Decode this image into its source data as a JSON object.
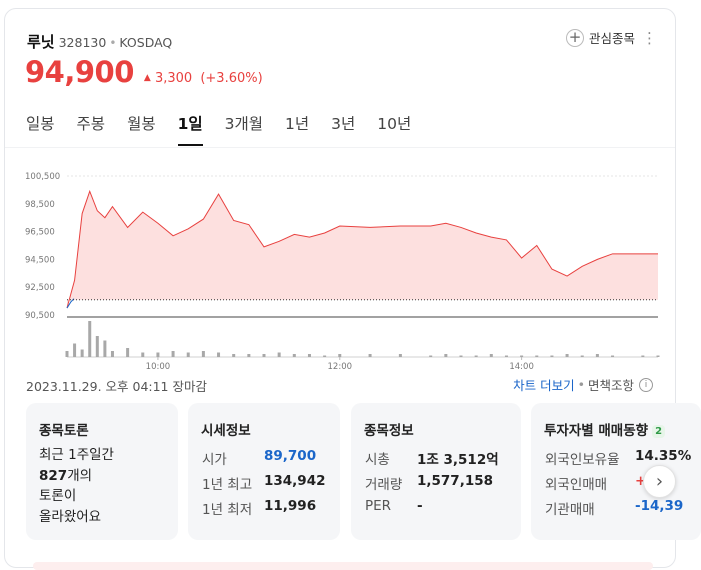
{
  "stock": {
    "name": "루닛",
    "code": "328130",
    "separator": "•",
    "market": "KOSDAQ",
    "price": "94,900",
    "change_arrow": "▲",
    "change_amount": "3,300",
    "change_percent": "(+3.60%)"
  },
  "actions": {
    "watchlist_label": "관심종목",
    "plus_icon": "+",
    "more_icon": "⋮"
  },
  "tabs": [
    {
      "label": "일봉",
      "active": false
    },
    {
      "label": "주봉",
      "active": false
    },
    {
      "label": "월봉",
      "active": false
    },
    {
      "label": "1일",
      "active": true
    },
    {
      "label": "3개월",
      "active": false
    },
    {
      "label": "1년",
      "active": false
    },
    {
      "label": "3년",
      "active": false
    },
    {
      "label": "10년",
      "active": false
    }
  ],
  "chart_data": {
    "type": "area",
    "y_ticks": [
      "100,500",
      "98,500",
      "96,500",
      "94,500",
      "92,500",
      "90,500"
    ],
    "x_ticks": [
      "10:00",
      "12:00",
      "14:00"
    ],
    "ylim": [
      90500,
      100500
    ],
    "previous_close": 91600,
    "colors": {
      "line": "#e8413f",
      "fill": "#fde0df",
      "baseline": "#333333",
      "volume": "#a8a8a8",
      "below": "#1b66c9"
    },
    "x": [
      "09:00",
      "09:05",
      "09:10",
      "09:15",
      "09:20",
      "09:25",
      "09:30",
      "09:40",
      "09:50",
      "10:00",
      "10:10",
      "10:20",
      "10:30",
      "10:40",
      "10:50",
      "11:00",
      "11:10",
      "11:20",
      "11:30",
      "11:40",
      "11:50",
      "12:00",
      "12:20",
      "12:40",
      "13:00",
      "13:10",
      "13:20",
      "13:30",
      "13:40",
      "13:50",
      "14:00",
      "14:10",
      "14:20",
      "14:30",
      "14:40",
      "14:50",
      "15:00",
      "15:20",
      "15:30"
    ],
    "price": [
      91000,
      93000,
      97800,
      99400,
      98000,
      97500,
      98300,
      96800,
      97900,
      97100,
      96200,
      96700,
      97400,
      99200,
      97300,
      97000,
      95400,
      95800,
      96300,
      96100,
      96400,
      96900,
      96800,
      96900,
      96900,
      97100,
      96800,
      96400,
      96100,
      95900,
      94600,
      95500,
      93800,
      93300,
      94000,
      94500,
      94900,
      94900,
      94900
    ],
    "volume": [
      4,
      9,
      5,
      24,
      14,
      11,
      4,
      6,
      3,
      3,
      4,
      3,
      4,
      3,
      2,
      2,
      2,
      3,
      2,
      2,
      1,
      2,
      2,
      2,
      1,
      2,
      1,
      1,
      2,
      1,
      1,
      1,
      1,
      2,
      1,
      2,
      1,
      1,
      1
    ]
  },
  "footer": {
    "datetime": "2023.11.29. 오후 04:11 장마감",
    "chart_link": "차트 더보기",
    "separator": "•",
    "notice": "면책조항",
    "info_icon": "i"
  },
  "panels": {
    "board": {
      "title": "종목토론",
      "line1": "최근 1주일간",
      "count": "827",
      "line2_suffix": "개의",
      "line3": "토론이",
      "line4": "올라왔어요"
    },
    "market": {
      "title": "시세정보",
      "rows": [
        {
          "label": "시가",
          "value": "89,700"
        },
        {
          "label": "1년 최고",
          "value": "134,942"
        },
        {
          "label": "1년 최저",
          "value": "11,996"
        }
      ]
    },
    "info": {
      "title": "종목정보",
      "rows": [
        {
          "label": "시총",
          "value": "1조 3,512억"
        },
        {
          "label": "거래량",
          "value": "1,577,158"
        },
        {
          "label": "PER",
          "value": "-"
        }
      ]
    },
    "investor": {
      "title": "투자자별 매매동향",
      "badge": "2",
      "rows": [
        {
          "label": "외국인보유율",
          "value": "14.35%"
        },
        {
          "label": "외국인매매",
          "value": "+4"
        },
        {
          "label": "기관매매",
          "value": "-14,39"
        }
      ]
    }
  },
  "next_icon": "›"
}
